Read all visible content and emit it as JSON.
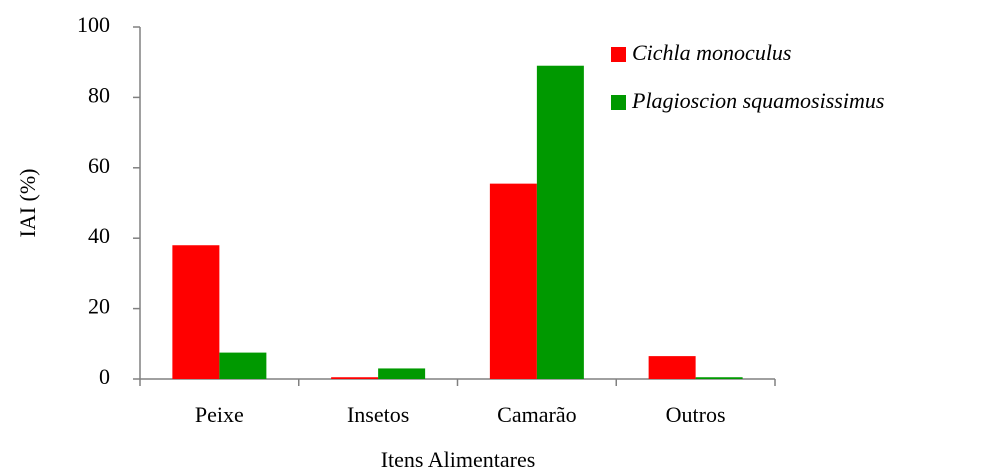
{
  "chart_data": {
    "type": "bar",
    "xlabel": "Itens Alimentares",
    "ylabel": "IAI (%)",
    "categories": [
      "Peixe",
      "Insetos",
      "Camarão",
      "Outros"
    ],
    "series": [
      {
        "name": "Cichla monoculus",
        "color": "#ff0000",
        "values": [
          38,
          0.5,
          55.5,
          6.5
        ]
      },
      {
        "name": "Plagioscion squamosissimus",
        "color": "#009900",
        "values": [
          7.5,
          3,
          89,
          0.5
        ]
      }
    ],
    "ylim": [
      0,
      100
    ],
    "yticks": [
      0,
      20,
      40,
      60,
      80,
      100
    ],
    "legend": "upper right"
  }
}
